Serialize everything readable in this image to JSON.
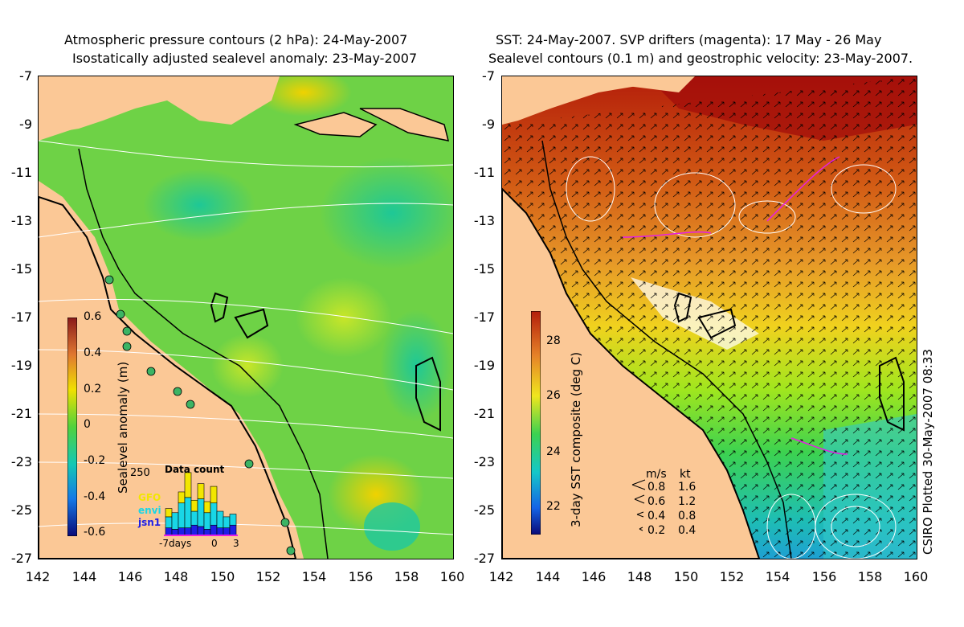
{
  "left_panel": {
    "title_line1": "Atmospheric pressure contours (2 hPa): 24-May-2007",
    "title_line2": "Isostatically adjusted sealevel anomaly: 23-May-2007",
    "colorbar": {
      "label": "Sealevel anomaly (m)",
      "ticks": [
        "0.6",
        "0.4",
        "0.2",
        "0",
        "-0.2",
        "-0.4",
        "-0.6"
      ]
    },
    "data_count": {
      "title": "Data count",
      "ymax_label": "250",
      "legend": [
        {
          "name": "GFO",
          "color": "#f2e600"
        },
        {
          "name": "envi",
          "color": "#19d6e6"
        },
        {
          "name": "jsn1",
          "color": "#1e1ee6"
        }
      ],
      "x_labels": [
        "-7days",
        "0",
        "3"
      ],
      "bars": [
        {
          "jsn1": 30,
          "envi": 40,
          "gfo": 30
        },
        {
          "jsn1": 25,
          "envi": 60,
          "gfo": 0
        },
        {
          "jsn1": 30,
          "envi": 90,
          "gfo": 40
        },
        {
          "jsn1": 30,
          "envi": 110,
          "gfo": 90
        },
        {
          "jsn1": 40,
          "envi": 50,
          "gfo": 40
        },
        {
          "jsn1": 35,
          "envi": 100,
          "gfo": 55
        },
        {
          "jsn1": 25,
          "envi": 60,
          "gfo": 40
        },
        {
          "jsn1": 40,
          "envi": 80,
          "gfo": 60
        },
        {
          "jsn1": 30,
          "envi": 60,
          "gfo": 0
        },
        {
          "jsn1": 30,
          "envi": 40,
          "gfo": 0
        },
        {
          "jsn1": 40,
          "envi": 40,
          "gfo": 0
        }
      ]
    }
  },
  "right_panel": {
    "title_line1": "SST: 24-May-2007. SVP drifters (magenta): 17 May - 26 May",
    "title_line2": "Sealevel contours (0.1 m) and geostrophic velocity: 23-May-2007.",
    "colorbar": {
      "label": "3-day SST composite (deg C)",
      "ticks": [
        "28",
        "26",
        "24",
        "22"
      ]
    },
    "velocity_key": {
      "header_ms": "m/s",
      "header_kt": "kt",
      "rows": [
        {
          "ms": "0.8",
          "kt": "1.6"
        },
        {
          "ms": "0.6",
          "kt": "1.2"
        },
        {
          "ms": "0.4",
          "kt": "0.8"
        },
        {
          "ms": "0.2",
          "kt": "0.4"
        }
      ]
    },
    "stamp": "CSIRO Plotted 30-May-2007 08:33"
  },
  "axes": {
    "y_ticks": [
      "-7",
      "-9",
      "-11",
      "-13",
      "-15",
      "-17",
      "-19",
      "-21",
      "-23",
      "-25",
      "-27"
    ],
    "x_ticks": [
      "142",
      "144",
      "146",
      "148",
      "150",
      "152",
      "154",
      "156",
      "158",
      "160"
    ]
  }
}
